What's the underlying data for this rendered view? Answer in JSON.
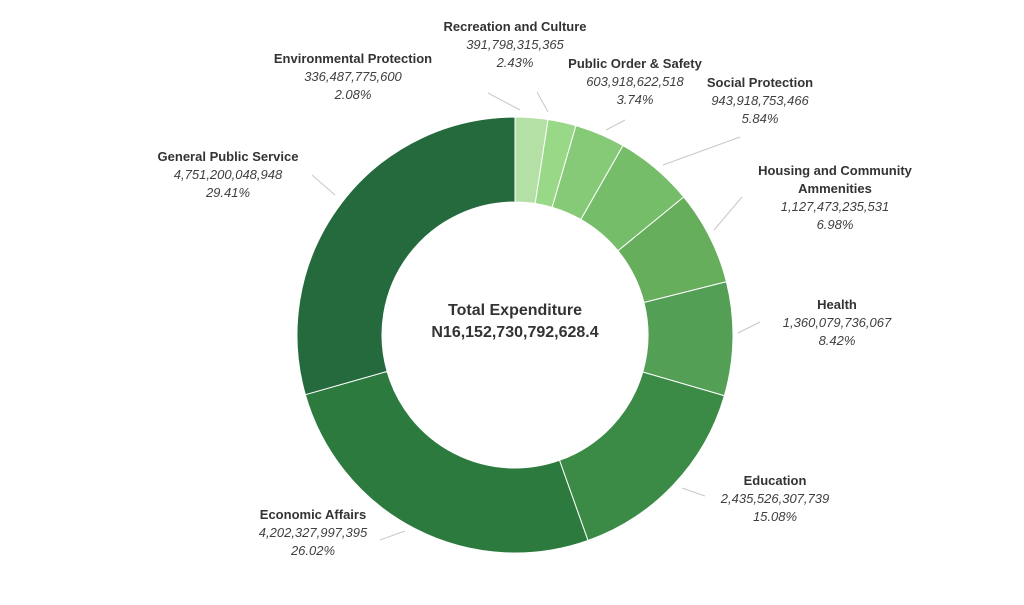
{
  "chart_data": {
    "type": "pie",
    "center": {
      "title": "Total Expenditure",
      "total": "N16,152,730,792,628.4"
    },
    "slices": [
      {
        "name": "Recreation and Culture",
        "value": 391798315365,
        "value_label": "391,798,315,365",
        "percent_label": "2.43%",
        "color": "#b5e0a5"
      },
      {
        "name": "Environmental Protection",
        "value": 336487775600,
        "value_label": "336,487,775,600",
        "percent_label": "2.08%",
        "color": "#99d886"
      },
      {
        "name": "Public Order & Safety",
        "value": 603918622518,
        "value_label": "603,918,622,518",
        "percent_label": "3.74%",
        "color": "#86c976"
      },
      {
        "name": "Social Protection",
        "value": 943918753466,
        "value_label": "943,918,753,466",
        "percent_label": "5.84%",
        "color": "#76bd69"
      },
      {
        "name": "Housing and Community Ammenities",
        "value": 1127473235531,
        "value_label": "1,127,473,235,531",
        "percent_label": "6.98%",
        "color": "#66ad5c"
      },
      {
        "name": "Health",
        "value": 1360079736067,
        "value_label": "1,360,079,736,067",
        "percent_label": "8.42%",
        "color": "#539f55"
      },
      {
        "name": "Education",
        "value": 2435526307739,
        "value_label": "2,435,526,307,739",
        "percent_label": "15.08%",
        "color": "#3b8b47"
      },
      {
        "name": "Economic Affairs",
        "value": 4202327997395,
        "value_label": "4,202,327,997,395",
        "percent_label": "26.02%",
        "color": "#2c7a3d"
      },
      {
        "name": "General Public Service",
        "value": 4751200048948,
        "value_label": "4,751,200,048,948",
        "percent_label": "29.41%",
        "color": "#246a3d"
      }
    ],
    "leader_color": "#c8c8c8"
  }
}
